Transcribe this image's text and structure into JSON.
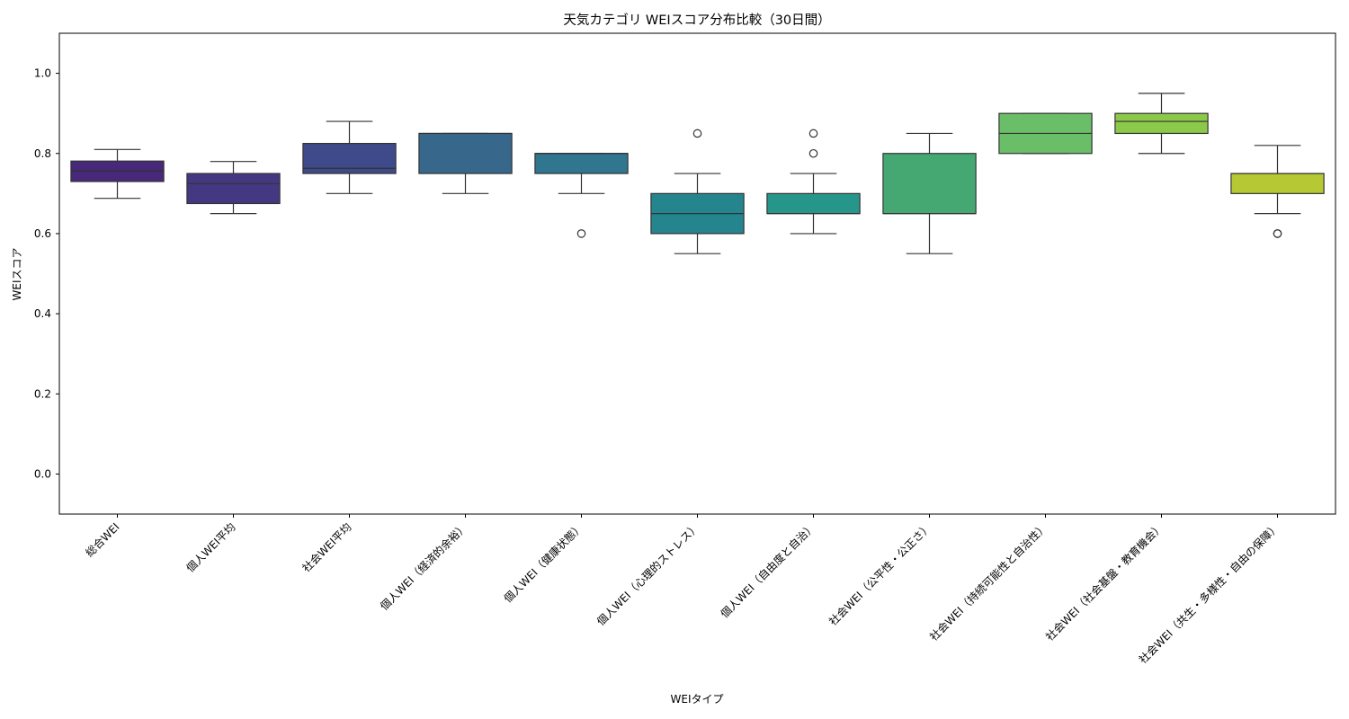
{
  "chart_data": {
    "type": "boxplot",
    "title": "天気カテゴリ WEIスコア分布比較（30日間）",
    "xlabel": "WEIタイプ",
    "ylabel": "WEIスコア",
    "ylim": [
      -0.1,
      1.1
    ],
    "yticks": [
      0.0,
      0.2,
      0.4,
      0.6,
      0.8,
      1.0
    ],
    "ytick_labels": [
      "0.0",
      "0.2",
      "0.4",
      "0.6",
      "0.8",
      "1.0"
    ],
    "grid": false,
    "legend": "none",
    "categories": [
      "総合WEI",
      "個人WEI平均",
      "社会WEI平均",
      "個人WEI（経済的余裕）",
      "個人WEI（健康状態）",
      "個人WEI（心理的ストレス）",
      "個人WEI（自由度と自治）",
      "社会WEI（公平性・公正さ）",
      "社会WEI（持続可能性と自治性）",
      "社会WEI（社会基盤・教育機会）",
      "社会WEI（共生・多様性・自由の保障）"
    ],
    "boxes": [
      {
        "whisker_low": 0.688,
        "q1": 0.73,
        "median": 0.756,
        "q3": 0.781,
        "whisker_high": 0.81,
        "outliers": [],
        "color": "#482878"
      },
      {
        "whisker_low": 0.65,
        "q1": 0.675,
        "median": 0.725,
        "q3": 0.75,
        "whisker_high": 0.78,
        "outliers": [],
        "color": "#453882"
      },
      {
        "whisker_low": 0.7,
        "q1": 0.75,
        "median": 0.763,
        "q3": 0.825,
        "whisker_high": 0.88,
        "outliers": [],
        "color": "#3e4a89"
      },
      {
        "whisker_low": 0.7,
        "q1": 0.75,
        "median": 0.85,
        "q3": 0.85,
        "whisker_high": 0.85,
        "outliers": [],
        "color": "#37678b"
      },
      {
        "whisker_low": 0.7,
        "q1": 0.75,
        "median": 0.8,
        "q3": 0.8,
        "whisker_high": 0.8,
        "outliers": [
          0.6
        ],
        "color": "#2f768e"
      },
      {
        "whisker_low": 0.55,
        "q1": 0.6,
        "median": 0.65,
        "q3": 0.7,
        "whisker_high": 0.75,
        "outliers": [
          0.85
        ],
        "color": "#25858e"
      },
      {
        "whisker_low": 0.6,
        "q1": 0.65,
        "median": 0.65,
        "q3": 0.7,
        "whisker_high": 0.75,
        "outliers": [
          0.8,
          0.85
        ],
        "color": "#26968b"
      },
      {
        "whisker_low": 0.55,
        "q1": 0.65,
        "median": 0.65,
        "q3": 0.8,
        "whisker_high": 0.85,
        "outliers": [],
        "color": "#45a873"
      },
      {
        "whisker_low": 0.8,
        "q1": 0.8,
        "median": 0.85,
        "q3": 0.9,
        "whisker_high": 0.9,
        "outliers": [],
        "color": "#6abe67"
      },
      {
        "whisker_low": 0.8,
        "q1": 0.85,
        "median": 0.88,
        "q3": 0.9,
        "whisker_high": 0.95,
        "outliers": [],
        "color": "#8cc94a"
      },
      {
        "whisker_low": 0.65,
        "q1": 0.7,
        "median": 0.75,
        "q3": 0.75,
        "whisker_high": 0.82,
        "outliers": [
          0.6,
          0.6
        ],
        "color": "#b6c934"
      }
    ]
  }
}
